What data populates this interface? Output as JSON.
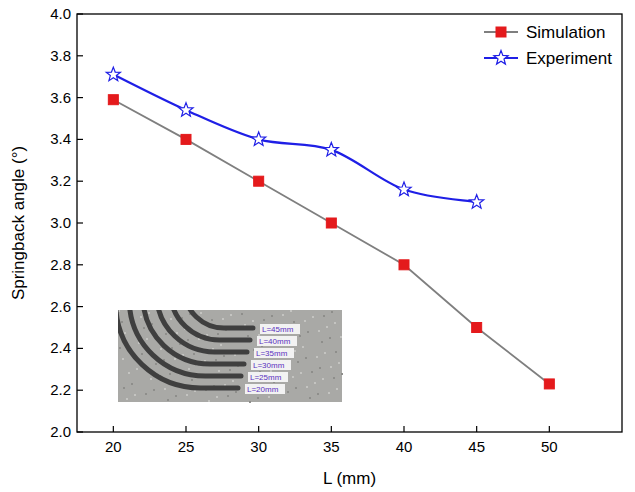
{
  "chart_data": {
    "type": "line",
    "x_label": "L (mm)",
    "y_label": "Springback angle (°)",
    "x": [
      20,
      25,
      30,
      35,
      40,
      45,
      50
    ],
    "series": [
      {
        "name": "Simulation",
        "color": "#e41a1c",
        "marker": "square",
        "line_style": "solid",
        "values": [
          3.59,
          3.4,
          3.2,
          3.0,
          2.8,
          2.5,
          2.23
        ]
      },
      {
        "name": "Experiment",
        "color": "#1f1fe6",
        "marker": "star",
        "line_style": "smooth",
        "values": [
          3.71,
          3.54,
          3.4,
          3.35,
          3.16,
          3.1,
          null
        ]
      }
    ],
    "xlim": [
      17.5,
      55
    ],
    "xticks": [
      20,
      25,
      30,
      35,
      40,
      45,
      50
    ],
    "ylim": [
      2.0,
      4.0
    ],
    "yticks": [
      {
        "value": 2.0,
        "label": "2.0"
      },
      2.2,
      2.4,
      2.6,
      2.8,
      {
        "value": 3.0,
        "label": "3.0"
      },
      3.2,
      3.4,
      3.6,
      3.8,
      {
        "value": 4.0,
        "label": "4.0"
      }
    ],
    "grid": false,
    "legend": "upper right",
    "annotations": [
      "L=45mm",
      "L=40mm",
      "L=35mm",
      "L=30mm",
      "L=25mm",
      "L=20mm"
    ]
  }
}
